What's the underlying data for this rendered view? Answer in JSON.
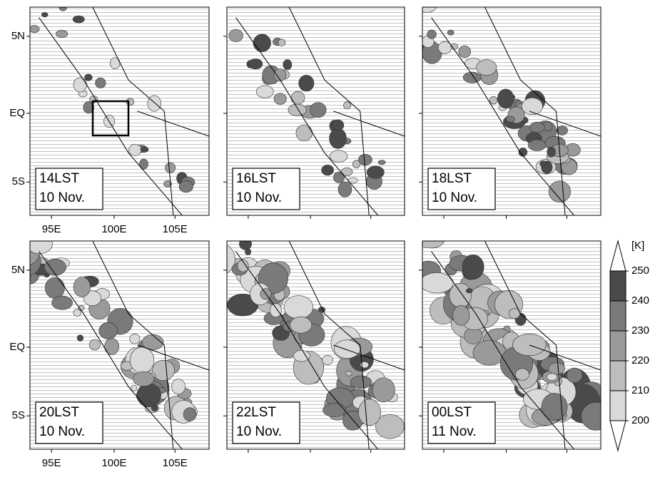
{
  "panels": [
    {
      "time": "14LST",
      "date": "10 Nov."
    },
    {
      "time": "16LST",
      "date": "10 Nov."
    },
    {
      "time": "18LST",
      "date": "10 Nov."
    },
    {
      "time": "20LST",
      "date": "10 Nov."
    },
    {
      "time": "22LST",
      "date": "10 Nov."
    },
    {
      "time": "00LST",
      "date": "11 Nov."
    }
  ],
  "x_axis": {
    "ticks": [
      "95E",
      "100E",
      "105E"
    ]
  },
  "y_axis": {
    "ticks": [
      "5N",
      "EQ",
      "5S"
    ]
  },
  "colorbar": {
    "unit": "[K]",
    "ticks": [
      200,
      210,
      220,
      230,
      240,
      250
    ],
    "colors": [
      "#d9d9d9",
      "#bdbdbd",
      "#9a9a9a",
      "#7a7a7a",
      "#4a4a4a"
    ]
  }
}
